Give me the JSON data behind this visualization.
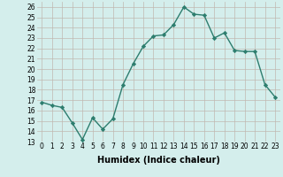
{
  "x": [
    0,
    1,
    2,
    3,
    4,
    5,
    6,
    7,
    8,
    9,
    10,
    11,
    12,
    13,
    14,
    15,
    16,
    17,
    18,
    19,
    20,
    21,
    22,
    23
  ],
  "y": [
    16.8,
    16.5,
    16.3,
    14.8,
    13.2,
    15.3,
    14.2,
    15.2,
    18.5,
    20.5,
    22.2,
    23.2,
    23.3,
    24.3,
    26.0,
    25.3,
    25.2,
    23.0,
    23.5,
    21.8,
    21.7,
    21.7,
    18.5,
    17.3
  ],
  "line_color": "#2d7d6e",
  "marker": "D",
  "marker_size": 2.2,
  "linewidth": 1.0,
  "xlabel": "Humidex (Indice chaleur)",
  "bg_color": "#d4eeec",
  "grid_color": "#c0b8b0",
  "xlim": [
    -0.5,
    23.5
  ],
  "ylim": [
    13,
    26.5
  ],
  "yticks": [
    13,
    14,
    15,
    16,
    17,
    18,
    19,
    20,
    21,
    22,
    23,
    24,
    25,
    26
  ],
  "xticks": [
    0,
    1,
    2,
    3,
    4,
    5,
    6,
    7,
    8,
    9,
    10,
    11,
    12,
    13,
    14,
    15,
    16,
    17,
    18,
    19,
    20,
    21,
    22,
    23
  ],
  "tick_fontsize": 5.5,
  "xlabel_fontsize": 7.0
}
